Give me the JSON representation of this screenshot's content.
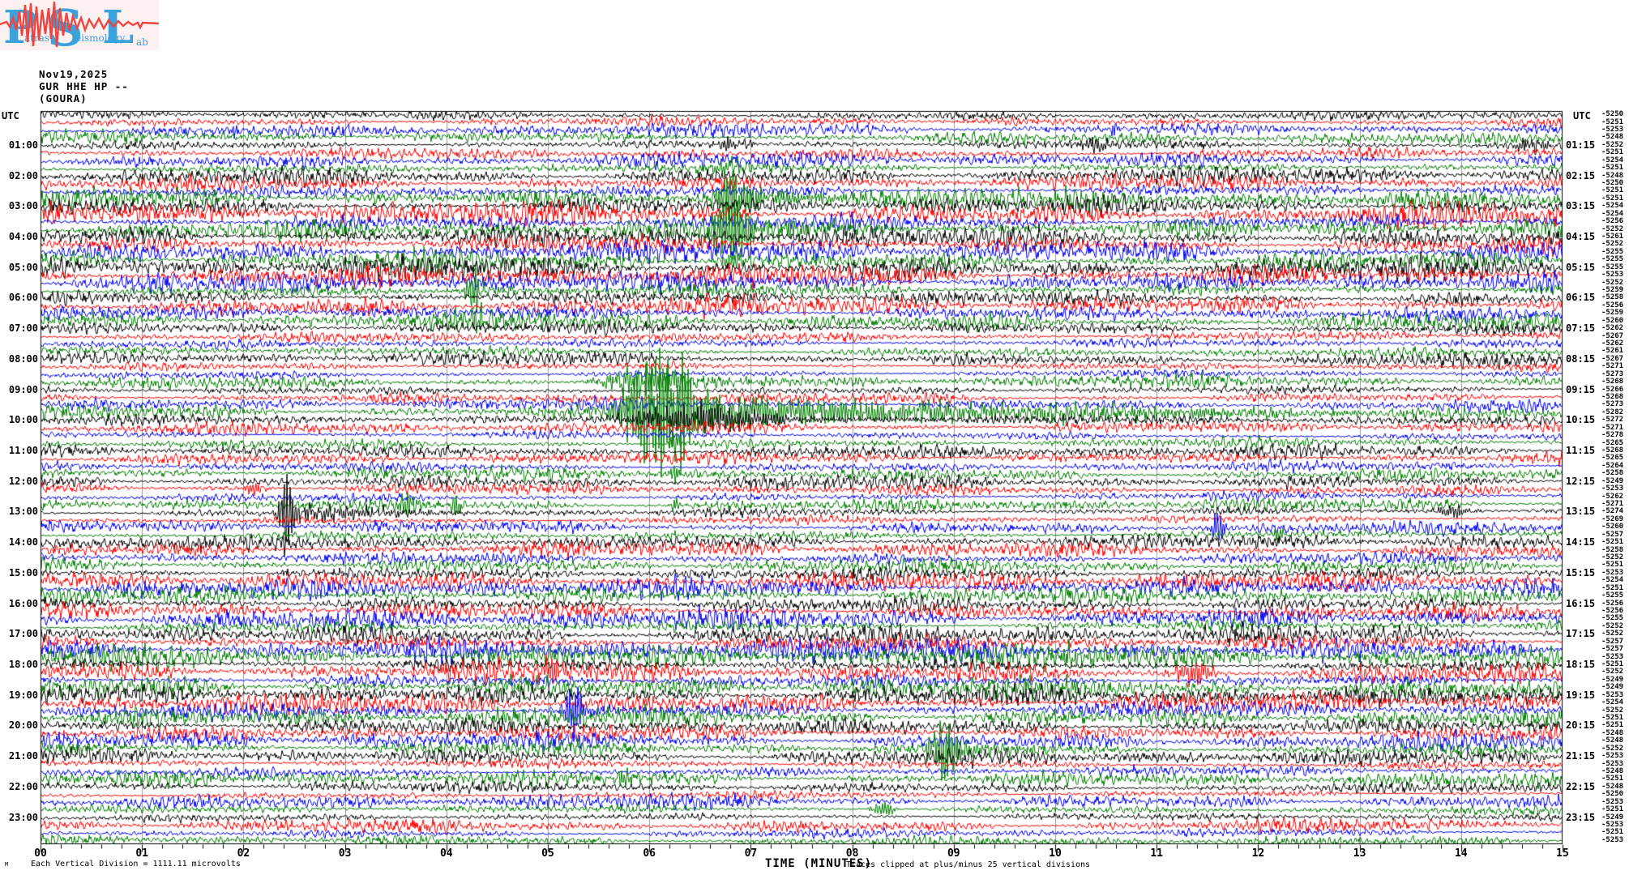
{
  "logo": {
    "letter_p": "P",
    "word_p": "atras",
    "letter_s": "S",
    "word_s": "eismology",
    "letter_l": "L",
    "word_l": "ab",
    "blue": "#3ba3dc",
    "red": "#ef4540",
    "background": "#fbf1f1"
  },
  "header": {
    "date": "Nov19,2025",
    "station_line": "GUR HHE HP --",
    "location_line": "(GOURA)"
  },
  "corner_labels": {
    "left": "UTC",
    "right": "UTC"
  },
  "axis": {
    "title": "TIME (MINUTES)",
    "tick_labels": [
      "00",
      "01",
      "02",
      "03",
      "04",
      "05",
      "06",
      "07",
      "08",
      "09",
      "10",
      "11",
      "12",
      "13",
      "14",
      "15"
    ],
    "minor_ticks_per_minute": 5
  },
  "footer": {
    "scale_note": "Each Vertical Division = 1111.11 microvolts",
    "clip_note": "Traces clipped at plus/minus 25 vertical divisions",
    "watermark": "M"
  },
  "colors": {
    "trace_cycle": [
      "#000000",
      "#fb0000",
      "#0000f0",
      "#007d00"
    ],
    "grid": "#999999",
    "border": "#000000"
  },
  "chart_data": {
    "type": "line",
    "description": "24-hour helicorder seismogram, 96 traces of 15 minutes each, colors cycling black/red/blue/green, amplitudes clipped at plus/minus 25 vertical divisions",
    "x_range_minutes": [
      0,
      15
    ],
    "left_labels": [
      "01:00",
      "02:00",
      "03:00",
      "04:00",
      "05:00",
      "06:00",
      "07:00",
      "08:00",
      "09:00",
      "10:00",
      "11:00",
      "12:00",
      "13:00",
      "14:00",
      "15:00",
      "16:00",
      "17:00",
      "18:00",
      "19:00",
      "20:00",
      "21:00",
      "22:00",
      "23:00"
    ],
    "right_labels": [
      "01:15",
      "02:15",
      "03:15",
      "04:15",
      "05:15",
      "06:15",
      "07:15",
      "08:15",
      "09:15",
      "10:15",
      "11:15",
      "12:15",
      "13:15",
      "14:15",
      "15:15",
      "16:15",
      "17:15",
      "18:15",
      "19:15",
      "20:15",
      "21:15",
      "22:15",
      "23:15"
    ],
    "rows": [
      {
        "utc": "00:00",
        "color": "black",
        "bias": -5250
      },
      {
        "utc": "00:15",
        "color": "red",
        "bias": -5251
      },
      {
        "utc": "00:30",
        "color": "blue",
        "bias": -5253
      },
      {
        "utc": "00:45",
        "color": "green",
        "bias": -5248
      },
      {
        "utc": "01:00",
        "color": "black",
        "bias": -5252
      },
      {
        "utc": "01:15",
        "color": "red",
        "bias": -5251
      },
      {
        "utc": "01:30",
        "color": "blue",
        "bias": -5254
      },
      {
        "utc": "01:45",
        "color": "green",
        "bias": -5251
      },
      {
        "utc": "02:00",
        "color": "black",
        "bias": -5248
      },
      {
        "utc": "02:15",
        "color": "red",
        "bias": -5250
      },
      {
        "utc": "02:30",
        "color": "blue",
        "bias": -5251
      },
      {
        "utc": "02:45",
        "color": "green",
        "bias": -5251
      },
      {
        "utc": "03:00",
        "color": "black",
        "bias": -5254
      },
      {
        "utc": "03:15",
        "color": "red",
        "bias": -5254
      },
      {
        "utc": "03:30",
        "color": "blue",
        "bias": -5256
      },
      {
        "utc": "03:45",
        "color": "green",
        "bias": -5252
      },
      {
        "utc": "04:00",
        "color": "black",
        "bias": -5261
      },
      {
        "utc": "04:15",
        "color": "red",
        "bias": -5252
      },
      {
        "utc": "04:30",
        "color": "blue",
        "bias": -5255
      },
      {
        "utc": "04:45",
        "color": "green",
        "bias": -5255
      },
      {
        "utc": "05:00",
        "color": "black",
        "bias": -5255
      },
      {
        "utc": "05:15",
        "color": "red",
        "bias": -5253
      },
      {
        "utc": "05:30",
        "color": "blue",
        "bias": -5252
      },
      {
        "utc": "05:45",
        "color": "green",
        "bias": -5259
      },
      {
        "utc": "06:00",
        "color": "black",
        "bias": -5258
      },
      {
        "utc": "06:15",
        "color": "red",
        "bias": -5256
      },
      {
        "utc": "06:30",
        "color": "blue",
        "bias": -5259
      },
      {
        "utc": "06:45",
        "color": "green",
        "bias": -5260
      },
      {
        "utc": "07:00",
        "color": "black",
        "bias": -5262
      },
      {
        "utc": "07:15",
        "color": "red",
        "bias": -5267
      },
      {
        "utc": "07:30",
        "color": "blue",
        "bias": -5262
      },
      {
        "utc": "07:45",
        "color": "green",
        "bias": -5261
      },
      {
        "utc": "08:00",
        "color": "black",
        "bias": -5267
      },
      {
        "utc": "08:15",
        "color": "red",
        "bias": -5271
      },
      {
        "utc": "08:30",
        "color": "blue",
        "bias": -5273
      },
      {
        "utc": "08:45",
        "color": "green",
        "bias": -5268
      },
      {
        "utc": "09:00",
        "color": "black",
        "bias": -5266
      },
      {
        "utc": "09:15",
        "color": "red",
        "bias": -5268
      },
      {
        "utc": "09:30",
        "color": "blue",
        "bias": -5273
      },
      {
        "utc": "09:45",
        "color": "green",
        "bias": -5282
      },
      {
        "utc": "10:00",
        "color": "black",
        "bias": -5272
      },
      {
        "utc": "10:15",
        "color": "red",
        "bias": -5271
      },
      {
        "utc": "10:30",
        "color": "blue",
        "bias": -5278
      },
      {
        "utc": "10:45",
        "color": "green",
        "bias": -5265
      },
      {
        "utc": "11:00",
        "color": "black",
        "bias": -5268
      },
      {
        "utc": "11:15",
        "color": "red",
        "bias": -5265
      },
      {
        "utc": "11:30",
        "color": "blue",
        "bias": -5264
      },
      {
        "utc": "11:45",
        "color": "green",
        "bias": -5258
      },
      {
        "utc": "12:00",
        "color": "black",
        "bias": -5249
      },
      {
        "utc": "12:15",
        "color": "red",
        "bias": -5253
      },
      {
        "utc": "12:30",
        "color": "blue",
        "bias": -5262
      },
      {
        "utc": "12:45",
        "color": "green",
        "bias": -5271
      },
      {
        "utc": "13:00",
        "color": "black",
        "bias": -5274
      },
      {
        "utc": "13:15",
        "color": "red",
        "bias": -5269
      },
      {
        "utc": "13:30",
        "color": "blue",
        "bias": -5260
      },
      {
        "utc": "13:45",
        "color": "green",
        "bias": -5257
      },
      {
        "utc": "14:00",
        "color": "black",
        "bias": -5251
      },
      {
        "utc": "14:15",
        "color": "red",
        "bias": -5258
      },
      {
        "utc": "14:30",
        "color": "blue",
        "bias": -5252
      },
      {
        "utc": "14:45",
        "color": "green",
        "bias": -5251
      },
      {
        "utc": "15:00",
        "color": "black",
        "bias": -5253
      },
      {
        "utc": "15:15",
        "color": "red",
        "bias": -5254
      },
      {
        "utc": "15:30",
        "color": "blue",
        "bias": -5251
      },
      {
        "utc": "15:45",
        "color": "green",
        "bias": -5255
      },
      {
        "utc": "16:00",
        "color": "black",
        "bias": -5256
      },
      {
        "utc": "16:15",
        "color": "red",
        "bias": -5256
      },
      {
        "utc": "16:30",
        "color": "blue",
        "bias": -5255
      },
      {
        "utc": "16:45",
        "color": "green",
        "bias": -5252
      },
      {
        "utc": "17:00",
        "color": "black",
        "bias": -5252
      },
      {
        "utc": "17:15",
        "color": "red",
        "bias": -5257
      },
      {
        "utc": "17:30",
        "color": "blue",
        "bias": -5257
      },
      {
        "utc": "17:45",
        "color": "green",
        "bias": -5253
      },
      {
        "utc": "18:00",
        "color": "black",
        "bias": -5251
      },
      {
        "utc": "18:15",
        "color": "red",
        "bias": -5252
      },
      {
        "utc": "18:30",
        "color": "blue",
        "bias": -5249
      },
      {
        "utc": "18:45",
        "color": "green",
        "bias": -5249
      },
      {
        "utc": "19:00",
        "color": "black",
        "bias": -5253
      },
      {
        "utc": "19:15",
        "color": "red",
        "bias": -5254
      },
      {
        "utc": "19:30",
        "color": "blue",
        "bias": -5252
      },
      {
        "utc": "19:45",
        "color": "green",
        "bias": -5251
      },
      {
        "utc": "20:00",
        "color": "black",
        "bias": -5251
      },
      {
        "utc": "20:15",
        "color": "red",
        "bias": -5248
      },
      {
        "utc": "20:30",
        "color": "blue",
        "bias": -5248
      },
      {
        "utc": "20:45",
        "color": "green",
        "bias": -5252
      },
      {
        "utc": "21:00",
        "color": "black",
        "bias": -5253
      },
      {
        "utc": "21:15",
        "color": "red",
        "bias": -5253
      },
      {
        "utc": "21:30",
        "color": "blue",
        "bias": -5248
      },
      {
        "utc": "21:45",
        "color": "green",
        "bias": -5251
      },
      {
        "utc": "22:00",
        "color": "black",
        "bias": -5248
      },
      {
        "utc": "22:15",
        "color": "red",
        "bias": -5250
      },
      {
        "utc": "22:30",
        "color": "blue",
        "bias": -5253
      },
      {
        "utc": "22:45",
        "color": "green",
        "bias": -5251
      },
      {
        "utc": "23:00",
        "color": "black",
        "bias": -5249
      },
      {
        "utc": "23:15",
        "color": "red",
        "bias": -5253
      },
      {
        "utc": "23:30",
        "color": "blue",
        "bias": -5251
      },
      {
        "utc": "23:45",
        "color": "green",
        "bias": -5253
      }
    ],
    "events": [
      {
        "r": 2,
        "m": 1.9,
        "a": 14,
        "w": 0.06
      },
      {
        "r": 2,
        "m": 10.6,
        "a": 13,
        "w": 0.06
      },
      {
        "r": 4,
        "m": 6.83,
        "a": 9,
        "w": 0.25
      },
      {
        "r": 4,
        "m": 10.4,
        "a": 9,
        "w": 0.2
      },
      {
        "r": 4,
        "m": 14.7,
        "a": 10,
        "w": 0.2
      },
      {
        "r": 7,
        "m": 6.79,
        "a": 12,
        "w": 0.15
      },
      {
        "r": 11,
        "m": 6.79,
        "a": 40,
        "w": 0.18,
        "t": 1.5
      },
      {
        "r": 15,
        "m": 6.79,
        "a": 35,
        "w": 0.3,
        "t": 1.5
      },
      {
        "r": 19,
        "m": 6.8,
        "a": 10,
        "w": 0.2
      },
      {
        "r": 23,
        "m": 4.26,
        "a": 24,
        "w": 0.12,
        "t": 0.6
      },
      {
        "r": 27,
        "m": 4.3,
        "a": 10,
        "w": 0.3
      },
      {
        "r": 35,
        "m": 5.9,
        "a": 20,
        "w": 0.5,
        "t": 1.5
      },
      {
        "r": 39,
        "m": 6.1,
        "a": 75,
        "w": 0.5,
        "t": 3.5
      },
      {
        "r": 40,
        "m": 6.45,
        "a": 16,
        "w": 0.9,
        "t": 3
      },
      {
        "r": 43,
        "m": 6.25,
        "a": 30,
        "w": 0.06
      },
      {
        "r": 47,
        "m": 6.25,
        "a": 20,
        "w": 0.05
      },
      {
        "r": 51,
        "m": 6.25,
        "a": 12,
        "w": 0.05
      },
      {
        "r": 55,
        "m": 6.25,
        "a": 8,
        "w": 0.05
      },
      {
        "r": 49,
        "m": 2.1,
        "a": 9,
        "w": 0.15
      },
      {
        "r": 51,
        "m": 3.64,
        "a": 24,
        "w": 0.12
      },
      {
        "r": 51,
        "m": 4.1,
        "a": 16,
        "w": 0.08
      },
      {
        "r": 52,
        "m": 2.41,
        "a": 40,
        "w": 0.1,
        "t": 1
      },
      {
        "r": 56,
        "m": 2.41,
        "a": 18,
        "w": 0.06
      },
      {
        "r": 60,
        "m": 2.41,
        "a": 10,
        "w": 0.05
      },
      {
        "r": 52,
        "m": 13.94,
        "a": 9,
        "w": 0.25
      },
      {
        "r": 54,
        "m": 11.6,
        "a": 20,
        "w": 0.1
      },
      {
        "r": 55,
        "m": 12.2,
        "a": 12,
        "w": 0.08
      },
      {
        "r": 73,
        "m": 5.05,
        "a": 18,
        "w": 0.15
      },
      {
        "r": 73,
        "m": 11.37,
        "a": 14,
        "w": 0.3
      },
      {
        "r": 78,
        "m": 5.25,
        "a": 34,
        "w": 0.12,
        "t": 0.5
      },
      {
        "r": 83,
        "m": 8.87,
        "a": 32,
        "w": 0.2,
        "t": 0.8
      },
      {
        "r": 87,
        "m": 5.74,
        "a": 16,
        "w": 0.1
      },
      {
        "r": 91,
        "m": 8.3,
        "a": 12,
        "w": 0.15
      }
    ]
  }
}
